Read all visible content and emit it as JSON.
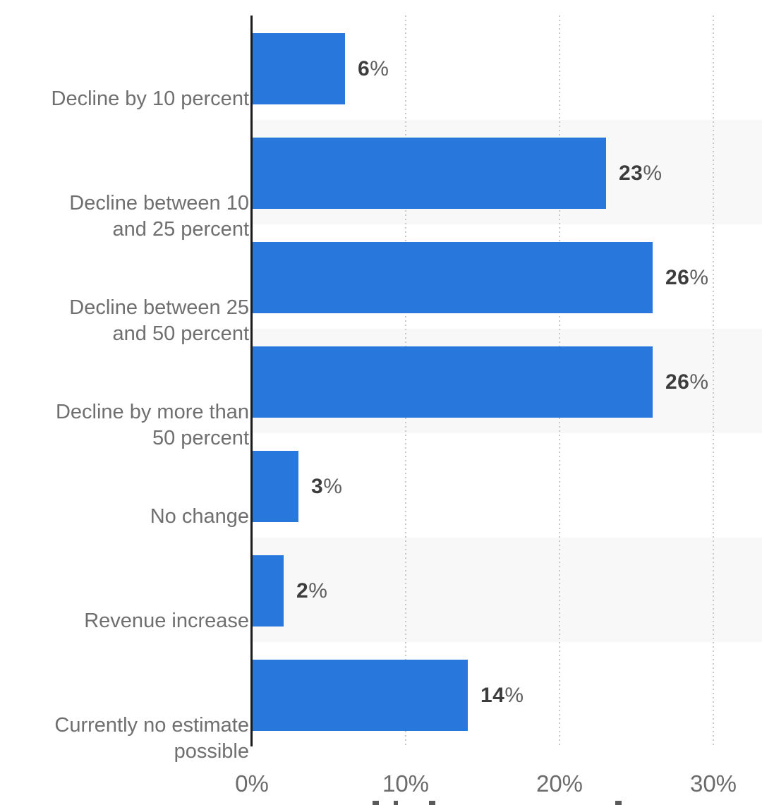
{
  "chart_data": {
    "type": "bar",
    "orientation": "horizontal",
    "title": "",
    "xlabel": "",
    "ylabel": "",
    "legend": "none",
    "grid": "vertical-dotted",
    "categories": [
      "Decline by 10 percent",
      "Decline between 10\nand 25 percent",
      "Decline between 25\nand 50 percent",
      "Decline by more than\n50 percent",
      "No change",
      "Revenue increase",
      "Currently no estimate\npossible"
    ],
    "values": [
      6,
      23,
      26,
      26,
      3,
      2,
      14
    ],
    "value_labels": [
      "6%",
      "23%",
      "26%",
      "26%",
      "3%",
      "2%",
      "14%"
    ],
    "x_ticks": [
      {
        "label": "0%",
        "value": 0
      },
      {
        "label": "10%",
        "value": 10
      },
      {
        "label": "20%",
        "value": 20
      },
      {
        "label": "30%",
        "value": 30
      }
    ],
    "xlim": [
      0,
      33
    ],
    "striped_row_indexes": [
      1,
      3,
      5
    ],
    "colors": {
      "bar": "#2777DD",
      "row_stripe": "#f8f8f8",
      "gridline": "#c8c8c8",
      "axis_line": "#1a1a1a",
      "category_label": "#6f6f6f",
      "tick_label": "#6b6b6b",
      "value_number": "#3d3d3d",
      "value_percent_sign": "#5f5f5f",
      "background": "#ffffff"
    },
    "cropped_caption": {
      "visible": true,
      "note": "only top edges of cut-off text visible at bottom of screenshot"
    }
  }
}
